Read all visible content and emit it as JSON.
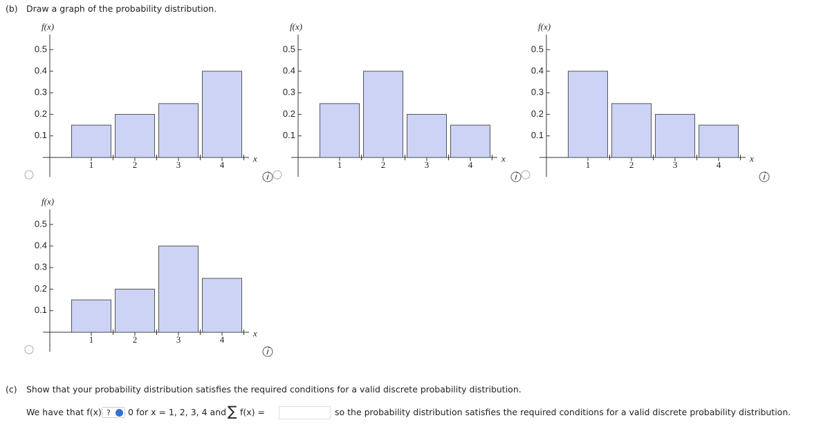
{
  "part_b": {
    "label": "(b)",
    "prompt": "Draw a graph of the probability distribution."
  },
  "chart_data": [
    {
      "type": "bar",
      "y_label": "f(x)",
      "x_label": "x",
      "categories": [
        "1",
        "2",
        "3",
        "4"
      ],
      "values": [
        0.15,
        0.2,
        0.25,
        0.4
      ],
      "color": "#ccd3f5",
      "ylim": [
        -0.09,
        0.57
      ],
      "yticks": [
        0.1,
        0.2,
        0.3,
        0.4,
        0.5
      ],
      "grid": false
    },
    {
      "type": "bar",
      "y_label": "f(x)",
      "x_label": "x",
      "categories": [
        "1",
        "2",
        "3",
        "4"
      ],
      "values": [
        0.25,
        0.4,
        0.2,
        0.15
      ],
      "color": "#ccd3f5",
      "ylim": [
        -0.09,
        0.57
      ],
      "yticks": [
        0.1,
        0.2,
        0.3,
        0.4,
        0.5
      ],
      "grid": false
    },
    {
      "type": "bar",
      "y_label": "f(x)",
      "x_label": "x",
      "categories": [
        "1",
        "2",
        "3",
        "4"
      ],
      "values": [
        0.4,
        0.25,
        0.2,
        0.15
      ],
      "color": "#ccd3f5",
      "ylim": [
        -0.09,
        0.57
      ],
      "yticks": [
        0.1,
        0.2,
        0.3,
        0.4,
        0.5
      ],
      "grid": false
    },
    {
      "type": "bar",
      "y_label": "f(x)",
      "x_label": "x",
      "categories": [
        "1",
        "2",
        "3",
        "4"
      ],
      "values": [
        0.15,
        0.2,
        0.4,
        0.25
      ],
      "color": "#ccd3f5",
      "ylim": [
        -0.09,
        0.57
      ],
      "yticks": [
        0.1,
        0.2,
        0.3,
        0.4,
        0.5
      ],
      "grid": false
    }
  ],
  "part_c": {
    "label": "(c)",
    "prompt": "Show that your probability distribution satisfies the required conditions for a valid discrete probability distribution.",
    "sentence_start": "We have that f(x)",
    "select_placeholder": "?",
    "sentence_middle": "0 for x = 1, 2, 3, 4 and",
    "sum_symbol": "∑",
    "sum_expression": "f(x) =",
    "sentence_end": "so the probability distribution satisfies the required conditions for a valid discrete probability distribution."
  }
}
